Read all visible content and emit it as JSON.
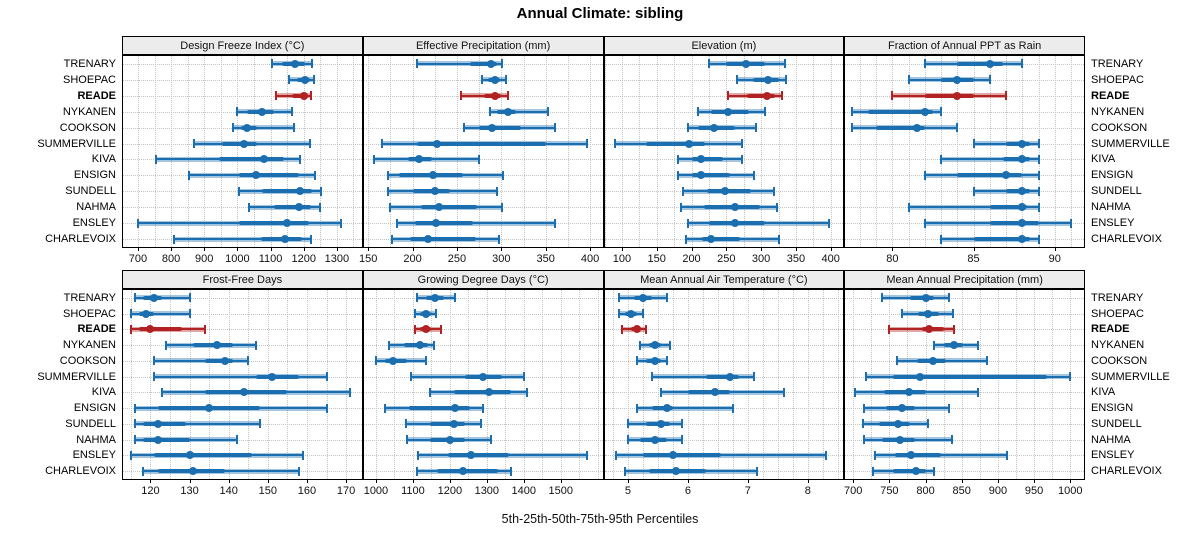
{
  "title": "Annual Climate: sibling",
  "caption": "5th-25th-50th-75th-95th Percentiles",
  "stations": [
    "TRENARY",
    "SHOEPAC",
    "READE",
    "NYKANEN",
    "COOKSON",
    "SUMMERVILLE",
    "KIVA",
    "ENSIGN",
    "SUNDELL",
    "NAHMA",
    "ENSLEY",
    "CHARLEVOIX"
  ],
  "highlight_station": "READE",
  "colors": {
    "series": "#1b6fb0",
    "series_light": "rgba(27,111,176,0.40)",
    "highlight": "#b22222",
    "highlight_light": "rgba(178,34,34,0.40)",
    "strip_bg": "#ececec",
    "grid": "#c4c4c4",
    "border": "#000000"
  },
  "chart_data": {
    "type": "dotplot-intervals",
    "percentiles": [
      5,
      25,
      50,
      75,
      95
    ],
    "legend_note": "each row shows 5th-25th-50th-75th-95th percentile interval; READE highlighted",
    "panels": [
      {
        "title": "Design Freeze Index (°C)",
        "xlim": [
          655,
          1375
        ],
        "ticks": [
          700,
          800,
          900,
          1000,
          1100,
          1200,
          1300
        ],
        "grid_step": 50,
        "values": [
          [
            1105,
            1135,
            1175,
            1205,
            1225
          ],
          [
            1155,
            1180,
            1205,
            1220,
            1232
          ],
          [
            1115,
            1165,
            1200,
            1212,
            1222
          ],
          [
            1000,
            1030,
            1075,
            1110,
            1165
          ],
          [
            988,
            1010,
            1030,
            1060,
            1170
          ],
          [
            870,
            955,
            1020,
            1060,
            1220
          ],
          [
            755,
            945,
            1080,
            1140,
            1190
          ],
          [
            855,
            1005,
            1055,
            1185,
            1235
          ],
          [
            1005,
            1075,
            1190,
            1225,
            1252
          ],
          [
            1035,
            1110,
            1185,
            1222,
            1250
          ],
          [
            700,
            1005,
            1150,
            1215,
            1312
          ],
          [
            810,
            1070,
            1145,
            1195,
            1222
          ]
        ]
      },
      {
        "title": "Effective Precipitation (mm)",
        "xlim": [
          145,
          414
        ],
        "ticks": [
          150,
          200,
          250,
          300,
          350,
          400
        ],
        "grid_step": 25,
        "values": [
          [
            205,
            265,
            288,
            295,
            301
          ],
          [
            278,
            285,
            293,
            298,
            305
          ],
          [
            255,
            280,
            293,
            300,
            308
          ],
          [
            287,
            295,
            307,
            316,
            353
          ],
          [
            258,
            275,
            290,
            322,
            361
          ],
          [
            165,
            205,
            228,
            350,
            397
          ],
          [
            157,
            195,
            207,
            222,
            275
          ],
          [
            172,
            185,
            223,
            257,
            302
          ],
          [
            172,
            200,
            225,
            242,
            295
          ],
          [
            175,
            210,
            230,
            273,
            301
          ],
          [
            183,
            203,
            226,
            268,
            360
          ],
          [
            177,
            197,
            217,
            272,
            297
          ]
        ]
      },
      {
        "title": "Elevation (m)",
        "xlim": [
          75,
          418
        ],
        "ticks": [
          100,
          150,
          200,
          250,
          300,
          350,
          400
        ],
        "grid_step": 25,
        "values": [
          [
            225,
            250,
            278,
            305,
            335
          ],
          [
            265,
            288,
            310,
            325,
            336
          ],
          [
            253,
            280,
            308,
            320,
            330
          ],
          [
            210,
            228,
            252,
            282,
            305
          ],
          [
            195,
            210,
            232,
            262,
            293
          ],
          [
            90,
            135,
            196,
            220,
            272
          ],
          [
            180,
            200,
            213,
            245,
            273
          ],
          [
            180,
            200,
            213,
            255,
            290
          ],
          [
            188,
            222,
            248,
            285,
            318
          ],
          [
            185,
            218,
            262,
            298,
            323
          ],
          [
            195,
            225,
            262,
            305,
            397
          ],
          [
            192,
            215,
            228,
            270,
            325
          ]
        ]
      },
      {
        "title": "Fraction of Annual PPT as Rain",
        "xlim": [
          77.1,
          91.8
        ],
        "ticks": [
          80,
          85,
          90
        ],
        "grid_step": 1,
        "values": [
          [
            82,
            84,
            86,
            86.8,
            88
          ],
          [
            81,
            83,
            84,
            85,
            86
          ],
          [
            80,
            82,
            84,
            85,
            87
          ],
          [
            77.5,
            78.5,
            82,
            82.5,
            83
          ],
          [
            77.5,
            79,
            81.5,
            82,
            84
          ],
          [
            85,
            87,
            88,
            88.5,
            89
          ],
          [
            83,
            86.8,
            88,
            88.5,
            89
          ],
          [
            82,
            84,
            87,
            88,
            89
          ],
          [
            85,
            87,
            88,
            88.5,
            89
          ],
          [
            81,
            86,
            88,
            88.3,
            89
          ],
          [
            82,
            86,
            88,
            89,
            91
          ],
          [
            83,
            85,
            88,
            88.5,
            89
          ]
        ]
      },
      {
        "title": "Frost-Free Days",
        "xlim": [
          113,
          174
        ],
        "ticks": [
          120,
          130,
          140,
          150,
          160,
          170
        ],
        "grid_step": 5,
        "values": [
          [
            116,
            118,
            121,
            123,
            130
          ],
          [
            115,
            117,
            119,
            121,
            130
          ],
          [
            115,
            117,
            120,
            128,
            134
          ],
          [
            124,
            131,
            137,
            141,
            147
          ],
          [
            121,
            134,
            139,
            141,
            145
          ],
          [
            121,
            147,
            151,
            158,
            165
          ],
          [
            123,
            134,
            144,
            155,
            171
          ],
          [
            116,
            122,
            135,
            148,
            165
          ],
          [
            116,
            118,
            122,
            129,
            148
          ],
          [
            116,
            118,
            122,
            130,
            142
          ],
          [
            115,
            121,
            130,
            146,
            159
          ],
          [
            118,
            122,
            131,
            139,
            158
          ]
        ]
      },
      {
        "title": "Growing Degree Days (°C)",
        "xlim": [
          967,
          1613
        ],
        "ticks": [
          1000,
          1100,
          1200,
          1300,
          1400,
          1500
        ],
        "grid_step": 50,
        "values": [
          [
            1110,
            1135,
            1160,
            1185,
            1215
          ],
          [
            1105,
            1120,
            1135,
            1150,
            1162
          ],
          [
            1105,
            1120,
            1135,
            1150,
            1175
          ],
          [
            1035,
            1075,
            1120,
            1140,
            1157
          ],
          [
            1000,
            1025,
            1045,
            1085,
            1135
          ],
          [
            1095,
            1240,
            1290,
            1340,
            1400
          ],
          [
            1145,
            1210,
            1305,
            1365,
            1410
          ],
          [
            1025,
            1090,
            1215,
            1255,
            1290
          ],
          [
            1080,
            1145,
            1210,
            1240,
            1285
          ],
          [
            1085,
            1145,
            1200,
            1240,
            1310
          ],
          [
            1115,
            1195,
            1258,
            1360,
            1570
          ],
          [
            1110,
            1165,
            1235,
            1330,
            1365
          ]
        ]
      },
      {
        "title": "Mean Annual Air Temperature (°C)",
        "xlim": [
          4.61,
          8.59
        ],
        "ticks": [
          5,
          6,
          7,
          8
        ],
        "grid_step": 0.25,
        "values": [
          [
            4.85,
            5.1,
            5.25,
            5.4,
            5.65
          ],
          [
            4.85,
            4.95,
            5.05,
            5.15,
            5.25
          ],
          [
            4.9,
            5.05,
            5.15,
            5.2,
            5.3
          ],
          [
            5.2,
            5.35,
            5.45,
            5.55,
            5.7
          ],
          [
            5.15,
            5.3,
            5.45,
            5.55,
            5.65
          ],
          [
            5.4,
            6.3,
            6.7,
            6.85,
            7.1
          ],
          [
            5.55,
            6.0,
            6.45,
            6.7,
            7.6
          ],
          [
            5.15,
            5.4,
            5.65,
            5.75,
            6.75
          ],
          [
            5.0,
            5.3,
            5.55,
            5.7,
            5.9
          ],
          [
            5.0,
            5.2,
            5.45,
            5.65,
            5.9
          ],
          [
            4.8,
            5.25,
            5.75,
            6.55,
            8.3
          ],
          [
            4.95,
            5.35,
            5.8,
            6.3,
            7.15
          ]
        ]
      },
      {
        "title": "Mean Annual Precipitation (mm)",
        "xlim": [
          689,
          1019
        ],
        "ticks": [
          700,
          750,
          800,
          850,
          900,
          950,
          1000
        ],
        "grid_step": 25,
        "values": [
          [
            740,
            778,
            800,
            812,
            833
          ],
          [
            768,
            790,
            803,
            818,
            838
          ],
          [
            750,
            795,
            805,
            825,
            840
          ],
          [
            812,
            825,
            840,
            852,
            873
          ],
          [
            760,
            788,
            810,
            828,
            885
          ],
          [
            718,
            755,
            793,
            968,
            1000
          ],
          [
            703,
            742,
            777,
            800,
            873
          ],
          [
            715,
            745,
            768,
            785,
            833
          ],
          [
            713,
            735,
            762,
            778,
            803
          ],
          [
            715,
            740,
            765,
            785,
            837
          ],
          [
            730,
            758,
            780,
            822,
            913
          ],
          [
            728,
            755,
            787,
            800,
            812
          ]
        ]
      }
    ]
  }
}
